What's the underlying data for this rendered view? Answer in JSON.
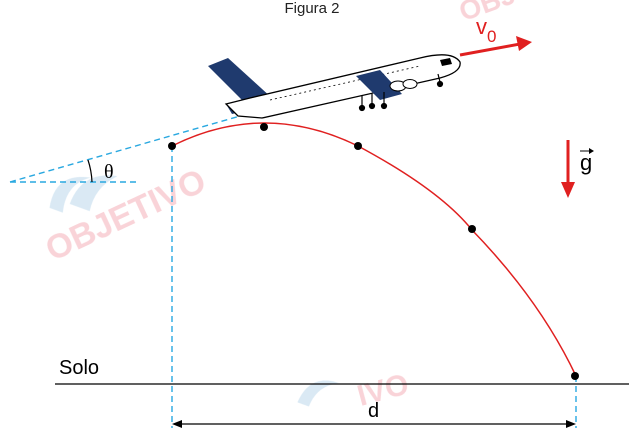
{
  "figure": {
    "caption": "Figura 2",
    "labels": {
      "velocity_symbol": "v",
      "velocity_subscript": "0",
      "angle": "θ",
      "gravity": "g",
      "ground": "Solo",
      "distance": "d"
    },
    "watermark_text": "OBJETIVO",
    "colors": {
      "trajectory": "#e02020",
      "velocity_arrow": "#e02020",
      "gravity_arrow": "#e02020",
      "dashed_guides": "#29a8e0",
      "airplane_tail": "#1f3a6e",
      "watermark": "#f4b0b8",
      "watermark_mark": "#bcd8ec"
    }
  }
}
